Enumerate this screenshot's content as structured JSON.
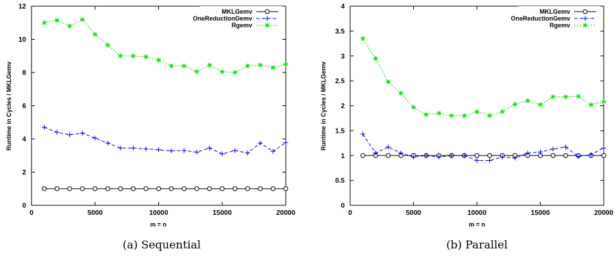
{
  "chart_data": [
    {
      "type": "line",
      "caption": "(a) Sequential",
      "xlabel": "m = n",
      "ylabel": "Runtime in Cycles / MKLGemv",
      "xlim": [
        0,
        20000
      ],
      "ylim": [
        0,
        12
      ],
      "xticks": [
        0,
        5000,
        10000,
        15000,
        20000
      ],
      "yticks": [
        0,
        2,
        4,
        6,
        8,
        10,
        12
      ],
      "legend_position": "top-right",
      "x": [
        1000,
        2000,
        3000,
        4000,
        5000,
        6000,
        7000,
        8000,
        9000,
        10000,
        11000,
        12000,
        13000,
        14000,
        15000,
        16000,
        17000,
        18000,
        19000,
        20000
      ],
      "series": [
        {
          "name": "MKLGemv",
          "color": "#000000",
          "marker": "circle",
          "dash": "",
          "values": [
            1,
            1,
            1,
            1,
            1,
            1,
            1,
            1,
            1,
            1,
            1,
            1,
            1,
            1,
            1,
            1,
            1,
            1,
            1,
            1
          ]
        },
        {
          "name": "OneReductionGemv",
          "color": "#0000ff",
          "marker": "plus",
          "dash": "5,3",
          "values": [
            4.7,
            4.4,
            4.25,
            4.35,
            4.05,
            3.75,
            3.45,
            3.45,
            3.4,
            3.35,
            3.28,
            3.3,
            3.2,
            3.45,
            3.1,
            3.3,
            3.15,
            3.75,
            3.25,
            3.78
          ]
        },
        {
          "name": "Rgemv",
          "color": "#00e000",
          "marker": "star",
          "dash": "2,2",
          "values": [
            11.0,
            11.15,
            10.8,
            11.2,
            10.3,
            9.65,
            9.0,
            9.0,
            8.95,
            8.75,
            8.4,
            8.4,
            8.05,
            8.45,
            8.05,
            8.0,
            8.4,
            8.45,
            8.3,
            8.5
          ]
        }
      ]
    },
    {
      "type": "line",
      "caption": "(b) Parallel",
      "xlabel": "m = n",
      "ylabel": "Runtime in Cycles / MKLGemv",
      "xlim": [
        0,
        20000
      ],
      "ylim": [
        0,
        4
      ],
      "xticks": [
        0,
        5000,
        10000,
        15000,
        20000
      ],
      "yticks": [
        0,
        0.5,
        1,
        1.5,
        2,
        2.5,
        3,
        3.5,
        4
      ],
      "legend_position": "top-right",
      "x": [
        1000,
        2000,
        3000,
        4000,
        5000,
        6000,
        7000,
        8000,
        9000,
        10000,
        11000,
        12000,
        13000,
        14000,
        15000,
        16000,
        17000,
        18000,
        19000,
        20000
      ],
      "series": [
        {
          "name": "MKLGemv",
          "color": "#000000",
          "marker": "circle",
          "dash": "",
          "values": [
            1,
            1,
            1,
            1,
            1,
            1,
            1,
            1,
            1,
            1,
            1,
            1,
            1,
            1,
            1,
            1,
            1,
            1,
            1,
            1
          ]
        },
        {
          "name": "OneReductionGemv",
          "color": "#0000ff",
          "marker": "plus",
          "dash": "5,3",
          "values": [
            1.43,
            1.05,
            1.17,
            1.05,
            0.97,
            1.0,
            0.97,
            1.0,
            1.0,
            0.9,
            0.9,
            0.97,
            0.95,
            1.05,
            1.07,
            1.13,
            1.17,
            0.98,
            1.02,
            1.15
          ]
        },
        {
          "name": "Rgemv",
          "color": "#00e000",
          "marker": "star",
          "dash": "2,2",
          "values": [
            3.35,
            2.95,
            2.48,
            2.25,
            1.97,
            1.82,
            1.85,
            1.8,
            1.8,
            1.88,
            1.8,
            1.88,
            2.03,
            2.1,
            2.02,
            2.18,
            2.18,
            2.19,
            2.02,
            2.08
          ]
        }
      ]
    }
  ]
}
